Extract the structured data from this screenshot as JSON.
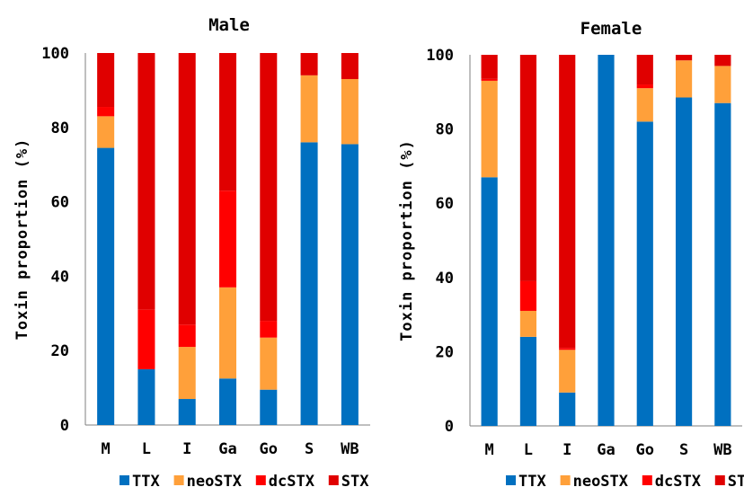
{
  "chart_data": [
    {
      "type": "bar",
      "stacked": true,
      "title": "Male",
      "ylabel": "Toxin proportion (%)",
      "ylim": [
        0,
        100
      ],
      "yticks": [
        0,
        20,
        40,
        60,
        80,
        100
      ],
      "categories": [
        "M",
        "L",
        "I",
        "Ga",
        "Go",
        "S",
        "WB"
      ],
      "series": [
        {
          "name": "TTX",
          "color": "#0070c0",
          "values": [
            74.5,
            15,
            7,
            12.5,
            9.5,
            76,
            75.5
          ]
        },
        {
          "name": "neoSTX",
          "color": "#ffa03a",
          "values": [
            8.5,
            0,
            14,
            24.5,
            14,
            18,
            17.5
          ]
        },
        {
          "name": "dcSTX",
          "color": "#ff0000",
          "values": [
            2.5,
            16,
            6,
            26,
            4.5,
            0,
            0
          ]
        },
        {
          "name": "STX",
          "color": "#e00000",
          "values": [
            14.5,
            69,
            73,
            37,
            72,
            6,
            7
          ]
        }
      ],
      "legend": "bottom"
    },
    {
      "type": "bar",
      "stacked": true,
      "title": "Female",
      "ylabel": "Toxin proportion (%)",
      "ylim": [
        0,
        100
      ],
      "yticks": [
        0,
        20,
        40,
        60,
        80,
        100
      ],
      "categories": [
        "M",
        "L",
        "I",
        "Ga",
        "Go",
        "S",
        "WB"
      ],
      "series": [
        {
          "name": "TTX",
          "color": "#0070c0",
          "values": [
            67,
            24,
            9,
            100,
            82,
            88.5,
            87
          ]
        },
        {
          "name": "neoSTX",
          "color": "#ffa03a",
          "values": [
            26,
            7,
            11.5,
            0,
            9,
            10,
            10
          ]
        },
        {
          "name": "dcSTX",
          "color": "#ff0000",
          "values": [
            0.5,
            8,
            0.5,
            0,
            1,
            0,
            0
          ]
        },
        {
          "name": "STX",
          "color": "#e00000",
          "values": [
            6.5,
            61,
            79,
            0,
            8,
            1.5,
            3
          ]
        }
      ],
      "legend": "bottom"
    }
  ]
}
